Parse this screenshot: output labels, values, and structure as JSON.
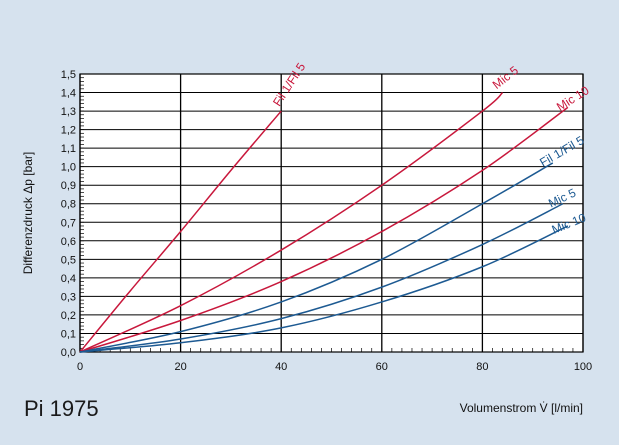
{
  "figure_id": "Pi 1975",
  "colors": {
    "background": "#d6e2ee",
    "plot_area": "#ffffff",
    "series_red": "#c8183c",
    "series_blue": "#1d5a92",
    "grid": "#000000"
  },
  "chart_data": {
    "type": "line",
    "title": "",
    "xlabel": "Volumenstrom V̇ [l/min]",
    "ylabel": "Differenzdruck Δp [bar]",
    "xlim": [
      0,
      100
    ],
    "ylim": [
      0,
      1.5
    ],
    "x_ticks": [
      0,
      20,
      40,
      60,
      80,
      100
    ],
    "x_tick_labels": [
      "0",
      "20",
      "40",
      "60",
      "80",
      "100"
    ],
    "y_ticks": [
      0,
      0.1,
      0.2,
      0.3,
      0.4,
      0.5,
      0.6,
      0.7,
      0.8,
      0.9,
      1.0,
      1.1,
      1.2,
      1.3,
      1.4,
      1.5
    ],
    "y_tick_labels": [
      "0,0",
      "0,1",
      "0,2",
      "0,3",
      "0,4",
      "0,5",
      "0,6",
      "0,7",
      "0,8",
      "0,9",
      "1,0",
      "1,1",
      "1,2",
      "1,3",
      "1,4",
      "1,5"
    ],
    "grid": true,
    "series": [
      {
        "name": "Fil 1/Fil 5",
        "color": "#c8183c",
        "x": [
          0,
          10,
          20,
          30,
          40
        ],
        "y": [
          0,
          0.33,
          0.65,
          0.98,
          1.3
        ]
      },
      {
        "name": "Mic 5",
        "color": "#c8183c",
        "x": [
          0,
          20,
          40,
          60,
          80,
          84
        ],
        "y": [
          0,
          0.25,
          0.55,
          0.9,
          1.3,
          1.4
        ]
      },
      {
        "name": "Mic 10",
        "color": "#c8183c",
        "x": [
          0,
          20,
          40,
          60,
          80,
          97
        ],
        "y": [
          0,
          0.17,
          0.38,
          0.65,
          0.98,
          1.32
        ]
      },
      {
        "name": "Fil 1/Fil 5",
        "color": "#1d5a92",
        "x": [
          0,
          20,
          40,
          60,
          80,
          94
        ],
        "y": [
          0,
          0.11,
          0.27,
          0.5,
          0.8,
          1.02
        ]
      },
      {
        "name": "Mic 5",
        "color": "#1d5a92",
        "x": [
          0,
          20,
          40,
          60,
          80,
          96
        ],
        "y": [
          0,
          0.07,
          0.18,
          0.35,
          0.58,
          0.8
        ]
      },
      {
        "name": "Mic 10",
        "color": "#1d5a92",
        "x": [
          0,
          20,
          40,
          60,
          80,
          97
        ],
        "y": [
          0,
          0.05,
          0.13,
          0.27,
          0.46,
          0.68
        ]
      }
    ]
  }
}
